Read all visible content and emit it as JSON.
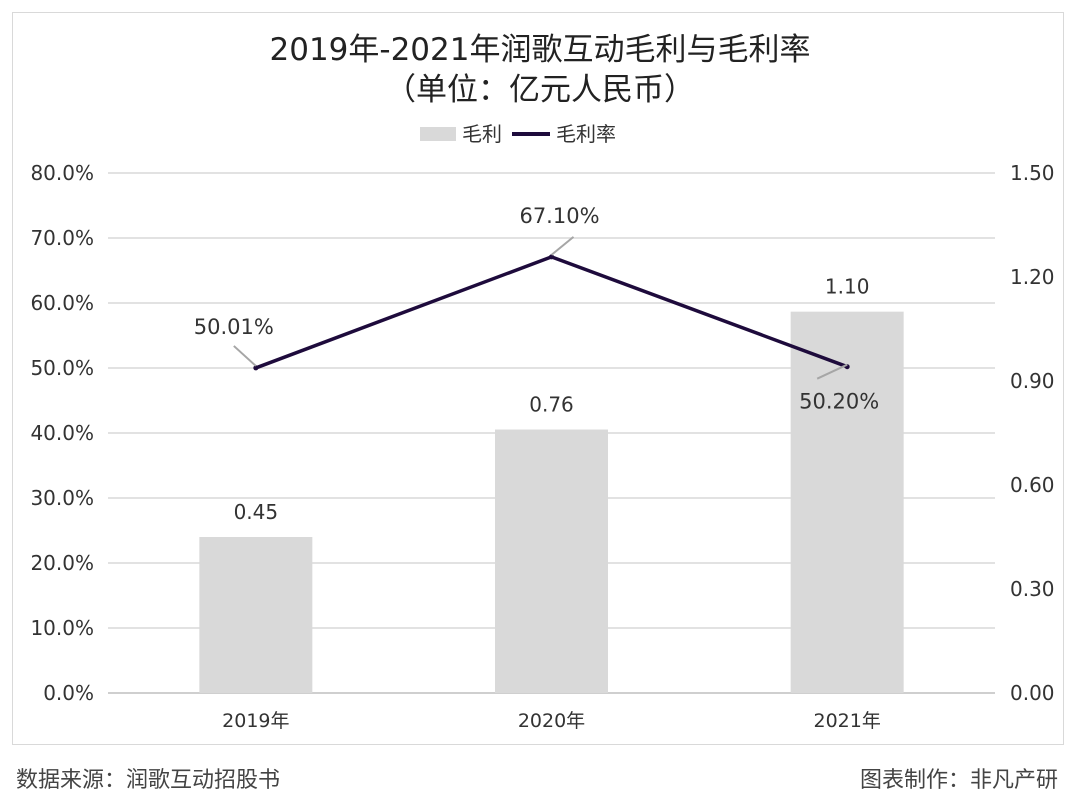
{
  "chart_data": {
    "type": "bar+line",
    "title": "2019年-2021年润歌互动毛利与毛利率",
    "subtitle": "（单位：亿元人民币）",
    "categories": [
      "2019年",
      "2020年",
      "2021年"
    ],
    "series": [
      {
        "name": "毛利",
        "type": "bar",
        "axis": "right",
        "values": [
          0.45,
          0.76,
          1.1
        ],
        "labels": [
          "0.45",
          "0.76",
          "1.10"
        ],
        "color": "#d9d9d9"
      },
      {
        "name": "毛利率",
        "type": "line",
        "axis": "left",
        "values": [
          50.01,
          67.1,
          50.2
        ],
        "labels": [
          "50.01%",
          "67.10%",
          "50.20%"
        ],
        "color": "#1e0b3c"
      }
    ],
    "left_axis": {
      "ylim": [
        0,
        80
      ],
      "ticks": [
        "0.0%",
        "10.0%",
        "20.0%",
        "30.0%",
        "40.0%",
        "50.0%",
        "60.0%",
        "70.0%",
        "80.0%"
      ]
    },
    "right_axis": {
      "ylim": [
        0,
        1.5
      ],
      "ticks": [
        "0.00",
        "0.30",
        "0.60",
        "0.90",
        "1.20",
        "1.50"
      ]
    },
    "grid": true,
    "legend": "top-center"
  },
  "footer": {
    "source": "数据来源：润歌互动招股书",
    "credit": "图表制作：非凡产研"
  }
}
